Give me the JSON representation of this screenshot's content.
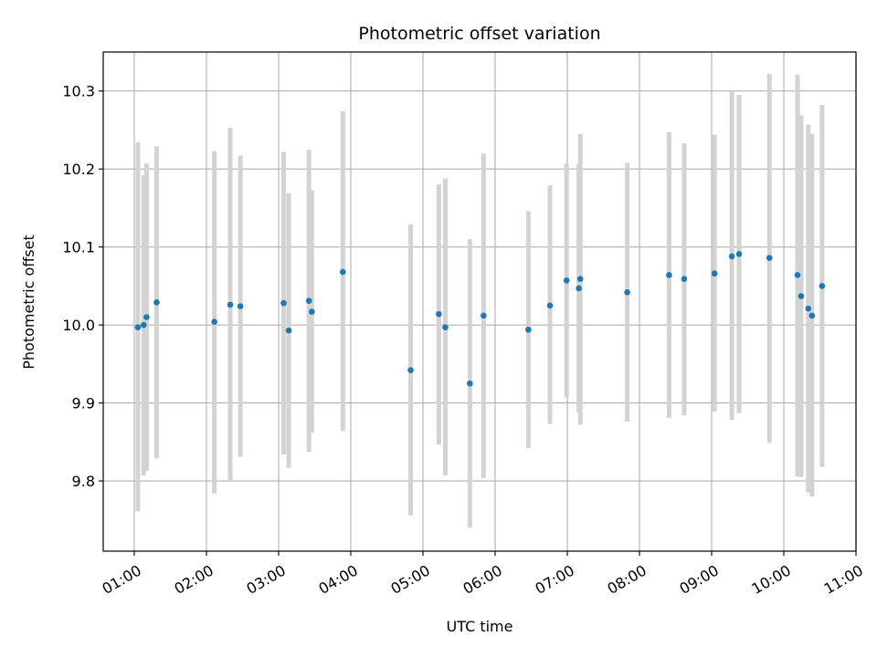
{
  "chart_data": {
    "type": "scatter",
    "title": "Photometric offset variation",
    "xlabel": "UTC time",
    "ylabel": "Photometric offset",
    "x_unit": "hour",
    "xlim": [
      0.57,
      11.0
    ],
    "ylim": [
      9.71,
      10.35
    ],
    "grid": true,
    "marker_color": "#1f77b4",
    "errorbar_color": "#d3d3d3",
    "x_ticks": [
      {
        "value": 1,
        "label": "01:00"
      },
      {
        "value": 2,
        "label": "02:00"
      },
      {
        "value": 3,
        "label": "03:00"
      },
      {
        "value": 4,
        "label": "04:00"
      },
      {
        "value": 5,
        "label": "05:00"
      },
      {
        "value": 6,
        "label": "06:00"
      },
      {
        "value": 7,
        "label": "07:00"
      },
      {
        "value": 8,
        "label": "08:00"
      },
      {
        "value": 9,
        "label": "09:00"
      },
      {
        "value": 10,
        "label": "10:00"
      },
      {
        "value": 11,
        "label": "11:00"
      }
    ],
    "y_ticks": [
      {
        "value": 9.8,
        "label": "9.8"
      },
      {
        "value": 9.9,
        "label": "9.9"
      },
      {
        "value": 10.0,
        "label": "10.0"
      },
      {
        "value": 10.1,
        "label": "10.1"
      },
      {
        "value": 10.2,
        "label": "10.2"
      },
      {
        "value": 10.3,
        "label": "10.3"
      }
    ],
    "points": [
      {
        "x": 1.05,
        "y": 9.997,
        "lo": 9.761,
        "hi": 10.234
      },
      {
        "x": 1.13,
        "y": 10.0,
        "lo": 9.807,
        "hi": 10.192
      },
      {
        "x": 1.17,
        "y": 10.01,
        "lo": 9.813,
        "hi": 10.207
      },
      {
        "x": 1.31,
        "y": 10.029,
        "lo": 9.829,
        "hi": 10.229
      },
      {
        "x": 2.11,
        "y": 10.004,
        "lo": 9.784,
        "hi": 10.223
      },
      {
        "x": 2.33,
        "y": 10.026,
        "lo": 9.8,
        "hi": 10.253
      },
      {
        "x": 2.47,
        "y": 10.024,
        "lo": 9.831,
        "hi": 10.217
      },
      {
        "x": 3.07,
        "y": 10.028,
        "lo": 9.834,
        "hi": 10.222
      },
      {
        "x": 3.14,
        "y": 9.993,
        "lo": 9.817,
        "hi": 10.169
      },
      {
        "x": 3.42,
        "y": 10.031,
        "lo": 9.837,
        "hi": 10.225
      },
      {
        "x": 3.46,
        "y": 10.017,
        "lo": 9.862,
        "hi": 10.173
      },
      {
        "x": 3.89,
        "y": 10.068,
        "lo": 9.864,
        "hi": 10.274
      },
      {
        "x": 4.83,
        "y": 9.942,
        "lo": 9.756,
        "hi": 10.129
      },
      {
        "x": 5.22,
        "y": 10.014,
        "lo": 9.847,
        "hi": 10.18
      },
      {
        "x": 5.31,
        "y": 9.997,
        "lo": 9.807,
        "hi": 10.188
      },
      {
        "x": 5.65,
        "y": 9.925,
        "lo": 9.74,
        "hi": 10.11
      },
      {
        "x": 5.84,
        "y": 10.012,
        "lo": 9.804,
        "hi": 10.22
      },
      {
        "x": 6.46,
        "y": 9.994,
        "lo": 9.842,
        "hi": 10.146
      },
      {
        "x": 6.76,
        "y": 10.025,
        "lo": 9.873,
        "hi": 10.179
      },
      {
        "x": 6.99,
        "y": 10.057,
        "lo": 9.907,
        "hi": 10.207
      },
      {
        "x": 7.16,
        "y": 10.047,
        "lo": 9.888,
        "hi": 10.206
      },
      {
        "x": 7.18,
        "y": 10.059,
        "lo": 9.872,
        "hi": 10.245
      },
      {
        "x": 7.83,
        "y": 10.042,
        "lo": 9.876,
        "hi": 10.208
      },
      {
        "x": 8.41,
        "y": 10.064,
        "lo": 9.881,
        "hi": 10.247
      },
      {
        "x": 8.62,
        "y": 10.059,
        "lo": 9.884,
        "hi": 10.233
      },
      {
        "x": 9.04,
        "y": 10.066,
        "lo": 9.889,
        "hi": 10.244
      },
      {
        "x": 9.28,
        "y": 10.088,
        "lo": 9.878,
        "hi": 10.299
      },
      {
        "x": 9.38,
        "y": 10.091,
        "lo": 9.887,
        "hi": 10.295
      },
      {
        "x": 9.8,
        "y": 10.086,
        "lo": 9.849,
        "hi": 10.322
      },
      {
        "x": 10.19,
        "y": 10.064,
        "lo": 9.806,
        "hi": 10.321
      },
      {
        "x": 10.24,
        "y": 10.037,
        "lo": 9.805,
        "hi": 10.269
      },
      {
        "x": 10.34,
        "y": 10.021,
        "lo": 9.785,
        "hi": 10.257
      },
      {
        "x": 10.39,
        "y": 10.012,
        "lo": 9.78,
        "hi": 10.245
      },
      {
        "x": 10.53,
        "y": 10.05,
        "lo": 9.818,
        "hi": 10.282
      }
    ]
  }
}
